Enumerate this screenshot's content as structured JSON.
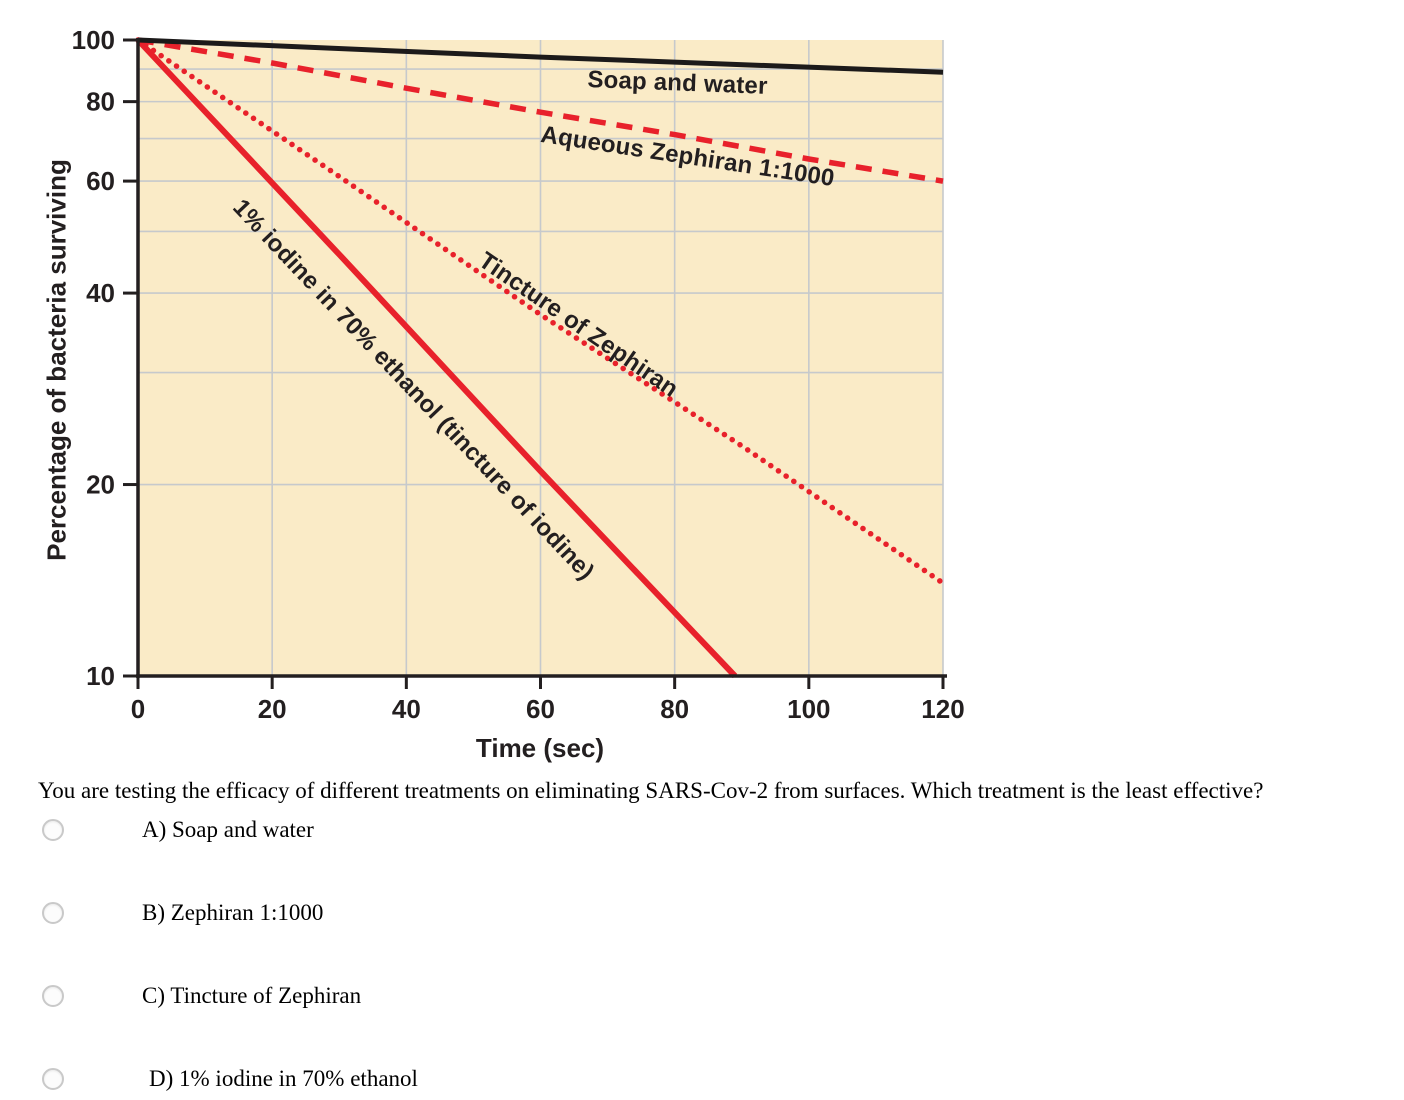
{
  "colors": {
    "page_background": "#ffffff",
    "plot_background": "#FAEBC7",
    "grid": "#C6C9CC",
    "axis": "#231F20",
    "red_line": "#E8212B",
    "black_line": "#1C1A1A",
    "radio_border": "#c9c9c9"
  },
  "chart_data": {
    "type": "line",
    "title": "",
    "xlabel": "Time (sec)",
    "ylabel": "Percentage of bacteria surviving",
    "xlim": [
      0,
      120
    ],
    "ylim": [
      10,
      100
    ],
    "y_scale": "log",
    "x_ticks": [
      0,
      20,
      40,
      60,
      80,
      100,
      120
    ],
    "y_ticks": [
      100,
      80,
      60,
      40,
      20,
      10
    ],
    "y_gridlines": [
      90,
      80,
      70,
      60,
      50,
      40,
      30,
      20
    ],
    "grid": "on",
    "legend_position": "labels-along-lines",
    "series": [
      {
        "name": "Soap and water",
        "color": "#1C1A1A",
        "style": "solid",
        "width": 5,
        "points": [
          [
            0,
            100
          ],
          [
            60,
            94
          ],
          [
            120,
            89
          ]
        ]
      },
      {
        "name": "Aqueous Zephiran 1:1000",
        "color": "#E8212B",
        "style": "dashed",
        "width": 5.5,
        "points": [
          [
            0,
            100
          ],
          [
            20,
            92
          ],
          [
            40,
            84
          ],
          [
            60,
            77
          ],
          [
            80,
            71
          ],
          [
            100,
            65
          ],
          [
            120,
            60
          ]
        ]
      },
      {
        "name": "Tincture of Zephiran",
        "color": "#E8212B",
        "style": "dotted",
        "width": 5.5,
        "points": [
          [
            0,
            100
          ],
          [
            30,
            61
          ],
          [
            60,
            37
          ],
          [
            90,
            23
          ],
          [
            120,
            14
          ]
        ]
      },
      {
        "name": "1% iodine in 70% ethanol (tincture of iodine)",
        "color": "#E8212B",
        "style": "solid",
        "width": 6,
        "points": [
          [
            0,
            100
          ],
          [
            30,
            46
          ],
          [
            60,
            21
          ],
          [
            89,
            10
          ]
        ]
      }
    ]
  },
  "question": {
    "text": "You are testing the efficacy of different treatments on eliminating SARS-Cov-2 from surfaces. Which treatment is the least effective?",
    "options": [
      {
        "label": "A) Soap and water",
        "selected": false
      },
      {
        "label": "B) Zephiran 1:1000",
        "selected": false
      },
      {
        "label": "C) Tincture of Zephiran",
        "selected": false
      },
      {
        "label": "D) 1% iodine in 70% ethanol",
        "selected": false
      }
    ]
  }
}
